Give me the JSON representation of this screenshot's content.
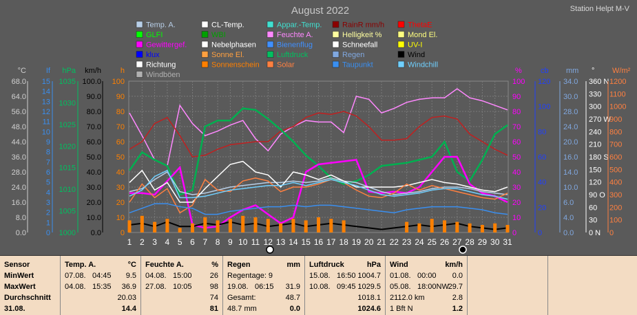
{
  "header": {
    "title": "August 2022",
    "station": "Station Helpt M-V"
  },
  "legend": [
    {
      "label": "Temp. A.",
      "color": "#b8cfe8"
    },
    {
      "label": "CL-Temp.",
      "color": "#ffffff"
    },
    {
      "label": "Appar.-Temp.",
      "color": "#40e0d0"
    },
    {
      "label": "RainR mm/h",
      "color": "#8b0000"
    },
    {
      "label": "ThetaE",
      "color": "#ff0000"
    },
    {
      "label": "GLFI",
      "color": "#00ff00"
    },
    {
      "label": "WBI",
      "color": "#00a000"
    },
    {
      "label": "Feuchte A.",
      "color": "#ff88ff"
    },
    {
      "label": "Helligkeit %",
      "color": "#ffffa0"
    },
    {
      "label": "Mond El.",
      "color": "#ffff80"
    },
    {
      "label": "Gewittergef.",
      "color": "#ff00ff"
    },
    {
      "label": "Nebelphasen",
      "color": "#ffffff"
    },
    {
      "label": "Bienenflug",
      "color": "#4090ff"
    },
    {
      "label": "Schneefall",
      "color": "#ffffff"
    },
    {
      "label": "UV-I",
      "color": "#ffff00"
    },
    {
      "label": "klux",
      "color": "#0000ff"
    },
    {
      "label": "Sonne El.",
      "color": "#ffa040"
    },
    {
      "label": "Luftdruck",
      "color": "#00c060"
    },
    {
      "label": "Regen",
      "color": "#80a8e0"
    },
    {
      "label": "Wind",
      "color": "#000000"
    },
    {
      "label": "Richtung",
      "color": "#ffffff"
    },
    {
      "label": "Sonnenschein",
      "color": "#ff8000"
    },
    {
      "label": "Solar",
      "color": "#ff8040"
    },
    {
      "label": "Taupunkt",
      "color": "#3a8ff0"
    },
    {
      "label": "Windchill",
      "color": "#70d0ff"
    },
    {
      "label": "Windböen",
      "color": "#b0b0b0"
    }
  ],
  "axes": {
    "temp": {
      "unit": "°C",
      "ticks": [
        "68.0",
        "64.0",
        "56.0",
        "48.0",
        "44.0",
        "36.0",
        "28.0",
        "24.0",
        "16.0",
        "8.0",
        "0.0"
      ],
      "color": "#d0d0d0"
    },
    "if": {
      "unit": "If",
      "ticks": [
        "15",
        "14",
        "13",
        "12",
        "11",
        "10",
        "9",
        "8",
        "7",
        "6",
        "5",
        "4",
        "3",
        "2",
        "1",
        "0"
      ],
      "color": "#3a8ff0"
    },
    "hpa": {
      "unit": "hPa",
      "ticks": [
        "1035",
        "1030",
        "1025",
        "1020",
        "1015",
        "1010",
        "1005",
        "1000"
      ],
      "color": "#00c060"
    },
    "kmh": {
      "unit": "km/h",
      "ticks": [
        "100.0",
        "90.0",
        "80.0",
        "70.0",
        "60.0",
        "50.0",
        "40.0",
        "30.0",
        "20.0",
        "10.0",
        "0.0"
      ],
      "color": "#000000"
    },
    "h": {
      "unit": "h",
      "ticks": [
        "100",
        "90",
        "80",
        "70",
        "60",
        "50",
        "40",
        "30",
        "20",
        "10",
        "0"
      ],
      "color": "#ff8000"
    },
    "pct": {
      "unit": "%",
      "ticks": [
        "100",
        "90",
        "80",
        "70",
        "60",
        "50",
        "40",
        "30",
        "20",
        "10",
        "0"
      ],
      "color": "#ff00ff"
    },
    "cb": {
      "unit": "cb",
      "ticks": [
        "120",
        "100",
        "80",
        "60",
        "40",
        "20",
        "0"
      ],
      "color": "#2040ff"
    },
    "mm": {
      "unit": "mm",
      "ticks": [
        "34.0",
        "30.0",
        "28.0",
        "24.0",
        "20.0",
        "16.0",
        "14.0",
        "10.0",
        "6.0",
        "4.0",
        "0.0"
      ],
      "color": "#80a8e0"
    },
    "dir": {
      "unit": "°",
      "ticks": [
        "360 N",
        "330",
        "300",
        "270 W",
        "240",
        "210",
        "180 S",
        "150",
        "120",
        "90  O",
        "60",
        "30",
        "0   N"
      ],
      "color": "#ffffff"
    },
    "wm2": {
      "unit": "W/m²",
      "ticks": [
        "1200",
        "1100",
        "1000",
        "900",
        "800",
        "700",
        "600",
        "500",
        "400",
        "300",
        "200",
        "100",
        "0"
      ],
      "color": "#ff8040"
    },
    "days": [
      "1",
      "2",
      "3",
      "4",
      "5",
      "6",
      "7",
      "8",
      "9",
      "10",
      "11",
      "12",
      "13",
      "14",
      "15",
      "16",
      "17",
      "18",
      "19",
      "20",
      "21",
      "22",
      "23",
      "24",
      "25",
      "26",
      "27",
      "28",
      "29",
      "30",
      "31"
    ]
  },
  "chart_data": {
    "type": "line",
    "title": "August 2022",
    "x": [
      1,
      2,
      3,
      4,
      5,
      6,
      7,
      8,
      9,
      10,
      11,
      12,
      13,
      14,
      15,
      16,
      17,
      18,
      19,
      20,
      21,
      22,
      23,
      24,
      25,
      26,
      27,
      28,
      29,
      30,
      31
    ],
    "xlabel": "",
    "ylim": [
      0,
      100
    ],
    "grid": true,
    "series": [
      {
        "name": "Feuchte A.",
        "color": "#ff88ff",
        "values": [
          79,
          64,
          48,
          44,
          84,
          72,
          64,
          67,
          71,
          74,
          62,
          54,
          65,
          70,
          74,
          73,
          73,
          66,
          90,
          88,
          79,
          82,
          86,
          88,
          89,
          89,
          95,
          89,
          87,
          84,
          81
        ]
      },
      {
        "name": "ThetaE",
        "color": "#c02020",
        "values": [
          55,
          60,
          72,
          76,
          64,
          50,
          51,
          55,
          58,
          59,
          60,
          60,
          67,
          70,
          76,
          79,
          78,
          80,
          77,
          70,
          61,
          61,
          62,
          70,
          76,
          77,
          75,
          65,
          60,
          55,
          51
        ]
      },
      {
        "name": "Luftdruck",
        "color": "#00b050",
        "values": [
          41,
          53,
          48,
          44,
          25,
          28,
          70,
          74,
          74,
          82,
          81,
          75,
          68,
          60,
          51,
          44,
          36,
          32,
          34,
          38,
          44,
          45,
          46,
          48,
          50,
          60,
          40,
          34,
          48,
          65,
          71
        ]
      },
      {
        "name": "Gewittergef.",
        "color": "#ff00ff",
        "values": [
          26,
          26,
          25,
          34,
          43,
          5,
          3,
          4,
          10,
          15,
          18,
          12,
          6,
          10,
          40,
          45,
          46,
          47,
          48,
          27,
          26,
          27,
          26,
          30,
          40,
          50,
          50,
          32,
          26,
          24,
          20
        ]
      },
      {
        "name": "Temp. A.",
        "color": "#b8cfe8",
        "values": [
          27,
          29,
          35,
          40,
          27,
          25,
          26,
          28,
          30,
          31,
          32,
          33,
          33,
          34,
          33,
          34,
          36,
          34,
          33,
          30,
          27,
          25,
          26,
          27,
          29,
          30,
          30,
          29,
          27,
          26,
          25
        ]
      },
      {
        "name": "CL-Temp.",
        "color": "#ffffff",
        "values": [
          33,
          41,
          28,
          33,
          20,
          20,
          29,
          37,
          45,
          47,
          40,
          38,
          30,
          40,
          38,
          35,
          38,
          34,
          30,
          30,
          30,
          30,
          31,
          33,
          35,
          33,
          32,
          30,
          28,
          27,
          30
        ]
      },
      {
        "name": "Solar",
        "color": "#ff8040",
        "values": [
          20,
          32,
          23,
          29,
          13,
          18,
          35,
          28,
          27,
          34,
          36,
          34,
          27,
          30,
          30,
          32,
          35,
          33,
          28,
          24,
          23,
          26,
          32,
          28,
          31,
          29,
          27,
          25,
          23,
          22,
          26
        ]
      },
      {
        "name": "Taupunkt",
        "color": "#3a8ff0",
        "values": [
          13,
          16,
          19,
          19,
          17,
          16,
          12,
          12,
          14,
          15,
          16,
          17,
          17,
          18,
          17,
          18,
          18,
          17,
          16,
          15,
          14,
          13,
          15,
          16,
          17,
          17,
          17,
          16,
          15,
          13,
          12
        ]
      },
      {
        "name": "Windchill",
        "color": "#70d0ff",
        "values": [
          24,
          28,
          37,
          41,
          23,
          23,
          24,
          26,
          28,
          29,
          30,
          31,
          31,
          33,
          31,
          33,
          35,
          33,
          31,
          28,
          25,
          24,
          25,
          26,
          28,
          29,
          29,
          27,
          25,
          24,
          22
        ]
      },
      {
        "name": "Wind",
        "color": "#000000",
        "values": [
          5,
          6,
          4,
          7,
          4,
          4,
          6,
          5,
          7,
          5,
          6,
          4,
          5,
          6,
          4,
          5,
          6,
          5,
          4,
          3,
          2,
          3,
          4,
          5,
          4,
          5,
          6,
          4,
          3,
          2,
          3
        ]
      },
      {
        "name": "Sonnenschein",
        "color": "#ff8000",
        "values": [
          8,
          11,
          7,
          9,
          3,
          6,
          10,
          8,
          9,
          11,
          10,
          9,
          6,
          9,
          8,
          10,
          9,
          8,
          0,
          0,
          0,
          0,
          7,
          6,
          9,
          8,
          7,
          6,
          5,
          6,
          5
        ]
      }
    ]
  },
  "summary": {
    "sensor": {
      "header": "Sensor",
      "rows": [
        "MinWert",
        "MaxWert",
        "Durchschnitt",
        "31.08."
      ]
    },
    "temp": {
      "header": "Temp. A.",
      "unit": "°C",
      "min_date": "07.08.",
      "min_time": "04:45",
      "min_val": "9.5",
      "max_date": "04.08.",
      "max_time": "15:35",
      "max_val": "36.9",
      "avg": "20.03",
      "today": "14.4"
    },
    "hum": {
      "header": "Feuchte A.",
      "unit": "%",
      "min_date": "04.08.",
      "min_time": "15:00",
      "min_val": "26",
      "max_date": "27.08.",
      "max_time": "10:05",
      "max_val": "98",
      "avg": "74",
      "today": "81"
    },
    "rain": {
      "header": "Regen",
      "unit": "mm",
      "days_label": "Regentage: 9",
      "max_date": "19.08.",
      "max_time": "06:15",
      "max_val": "31.9",
      "total_label": "Gesamt:",
      "total_val": "48.7",
      "today_left": "48.7 mm",
      "today": "0.0"
    },
    "press": {
      "header": "Luftdruck",
      "unit": "hPa",
      "min_date": "15.08.",
      "min_time": "16:50",
      "min_val": "1004.7",
      "max_date": "10.08.",
      "max_time": "09:45",
      "max_val": "1029.5",
      "avg": "1018.1",
      "today": "1024.6"
    },
    "wind": {
      "header": "Wind",
      "unit": "km/h",
      "min_date": "01.08.",
      "min_time": "00:00",
      "min_val": "0.0",
      "max_date": "05.08.",
      "max_time": "18:00NW",
      "max_val": "29.7",
      "avg_left": "2112.0 km",
      "avg": "2.8",
      "today_left": "1 Bft N",
      "today": "1.2"
    }
  }
}
